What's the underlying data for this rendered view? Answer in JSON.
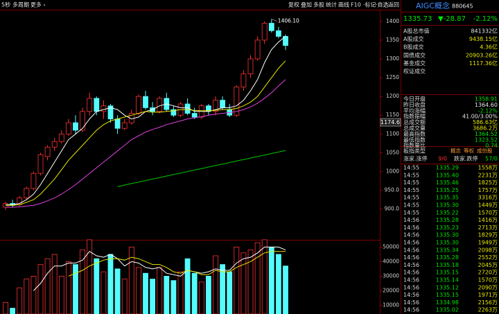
{
  "toolbar": {
    "left": [
      "5秒",
      "多周期",
      "更多 ›"
    ],
    "right": [
      "复权",
      "叠加",
      "多股",
      "统计",
      "画线",
      "F10",
      "·标记",
      "·自选",
      "返回"
    ]
  },
  "chart_data": [
    {
      "type": "candlestick",
      "open": [
        905,
        915,
        912,
        930,
        955,
        995,
        1040,
        1065,
        1080,
        1100,
        1130,
        1110,
        1160,
        1195,
        1160,
        1175,
        1140,
        1115,
        1130,
        1155,
        1200,
        1170,
        1160,
        1195,
        1165,
        1150,
        1180,
        1155,
        1145,
        1175,
        1160,
        1190,
        1165,
        1150,
        1225,
        1260,
        1300,
        1350,
        1395,
        1375,
        1360
      ],
      "high": [
        920,
        925,
        935,
        960,
        1000,
        1050,
        1070,
        1090,
        1110,
        1140,
        1150,
        1170,
        1210,
        1200,
        1190,
        1180,
        1150,
        1140,
        1165,
        1205,
        1215,
        1185,
        1200,
        1210,
        1175,
        1185,
        1195,
        1170,
        1180,
        1180,
        1200,
        1200,
        1180,
        1230,
        1270,
        1310,
        1360,
        1400,
        1406.1,
        1385,
        1365
      ],
      "low": [
        898,
        905,
        908,
        925,
        950,
        990,
        1030,
        1055,
        1075,
        1095,
        1100,
        1105,
        1150,
        1150,
        1140,
        1130,
        1100,
        1110,
        1125,
        1150,
        1165,
        1150,
        1155,
        1160,
        1145,
        1145,
        1150,
        1140,
        1140,
        1150,
        1150,
        1165,
        1145,
        1145,
        1215,
        1250,
        1295,
        1340,
        1370,
        1355,
        1323.52
      ],
      "close": [
        915,
        910,
        930,
        955,
        995,
        1045,
        1065,
        1080,
        1100,
        1130,
        1110,
        1160,
        1195,
        1160,
        1175,
        1140,
        1115,
        1130,
        1155,
        1200,
        1170,
        1160,
        1195,
        1165,
        1150,
        1180,
        1155,
        1145,
        1175,
        1160,
        1190,
        1170,
        1150,
        1225,
        1260,
        1300,
        1350,
        1395,
        1375,
        1360,
        1335.73
      ],
      "up_color": "#ff3232",
      "down_color": "#54fcfc",
      "series": [
        {
          "color": "#ffffff",
          "values": [
            912,
            912,
            915,
            925,
            940,
            965,
            995,
            1025,
            1055,
            1085,
            1100,
            1115,
            1140,
            1160,
            1165,
            1170,
            1165,
            1150,
            1140,
            1145,
            1160,
            1165,
            1175,
            1180,
            1175,
            1170,
            1170,
            1160,
            1160,
            1160,
            1165,
            1170,
            1170,
            1175,
            1190,
            1215,
            1245,
            1290,
            1325,
            1345,
            1360
          ]
        },
        {
          "color": "#e8e800",
          "values": [
            910,
            910,
            912,
            918,
            925,
            940,
            960,
            980,
            1005,
            1030,
            1050,
            1070,
            1090,
            1110,
            1125,
            1135,
            1140,
            1145,
            1150,
            1155,
            1160,
            1158,
            1158,
            1160,
            1162,
            1165,
            1165,
            1163,
            1162,
            1162,
            1163,
            1165,
            1165,
            1168,
            1175,
            1185,
            1200,
            1225,
            1250,
            1275,
            1295
          ]
        },
        {
          "color": "#e040e0",
          "values": [
            905,
            905,
            906,
            908,
            910,
            915,
            922,
            930,
            940,
            952,
            965,
            980,
            995,
            1010,
            1025,
            1040,
            1055,
            1070,
            1085,
            1095,
            1105,
            1112,
            1118,
            1125,
            1130,
            1135,
            1140,
            1143,
            1146,
            1150,
            1153,
            1155,
            1157,
            1160,
            1165,
            1172,
            1182,
            1195,
            1210,
            1228,
            1245
          ]
        },
        {
          "color": "#00c800",
          "values": [
            null,
            null,
            null,
            null,
            null,
            null,
            null,
            null,
            null,
            null,
            null,
            null,
            null,
            null,
            null,
            null,
            960,
            964,
            968,
            972,
            976,
            980,
            984,
            988,
            992,
            996,
            1000,
            1004,
            1008,
            1012,
            1016,
            1020,
            1024,
            1028,
            1032,
            1036,
            1040,
            1044,
            1048,
            1052,
            1056
          ]
        }
      ],
      "ylim": [
        820,
        1431
      ],
      "yticks": [
        1400,
        1350,
        1300,
        1250,
        1200,
        1150,
        1100,
        1050,
        1000,
        {
          "value": 950,
          "label": "950.0"
        },
        {
          "value": 900,
          "label": "900.0"
        }
      ],
      "high_label": "1406.10",
      "cursor_price": "1174.6"
    },
    {
      "type": "bar",
      "values": [
        12000,
        8000,
        22000,
        28000,
        30000,
        38000,
        42000,
        45000,
        30000,
        40000,
        38000,
        48000,
        55000,
        42000,
        33000,
        45000,
        35000,
        28000,
        50000,
        36000,
        32000,
        28000,
        36000,
        30000,
        27000,
        33000,
        42000,
        32000,
        26000,
        30000,
        44000,
        38000,
        33000,
        50000,
        46000,
        48000,
        53000,
        55000,
        50000,
        45000,
        37000
      ],
      "series": [
        {
          "color": "#ffffff",
          "values": [
            null,
            null,
            null,
            null,
            20000,
            25000,
            32000,
            37000,
            37000,
            39000,
            39000,
            41000,
            47000,
            44000,
            43000,
            45000,
            42000,
            37000,
            40000,
            39000,
            36000,
            35000,
            36000,
            32000,
            31000,
            30000,
            34000,
            33000,
            32000,
            33000,
            35000,
            34000,
            34000,
            39000,
            42000,
            43000,
            46000,
            50000,
            50000,
            50000,
            48000
          ]
        },
        {
          "color": "#e8e800",
          "values": [
            null,
            null,
            null,
            null,
            null,
            null,
            null,
            null,
            null,
            30000,
            32000,
            34000,
            37000,
            39000,
            41000,
            42000,
            42000,
            41000,
            43000,
            42000,
            40000,
            38000,
            38000,
            36000,
            33000,
            32000,
            34000,
            33000,
            31000,
            31000,
            34000,
            33000,
            33000,
            36000,
            38000,
            40000,
            43000,
            46000,
            47000,
            47000,
            47000
          ]
        }
      ],
      "ylim": [
        4000,
        54000
      ],
      "yticks": [
        50000,
        40000,
        30000,
        20000,
        10000
      ]
    }
  ],
  "quote_panel": {
    "name": "AIGC概念",
    "code": "880645",
    "price": "1335.73",
    "change": "▼-28.87",
    "pct": "-2.12%",
    "stats": [
      {
        "label": "A股总市值",
        "value": "841332亿",
        "color": "#e6e6e6"
      },
      {
        "label": "A股成交",
        "value": "9438.15亿",
        "color": "#e8e800"
      },
      {
        "label": "B股成交",
        "value": "4.36亿",
        "color": "#e8e800"
      },
      {
        "label": "国债成交",
        "value": "20903.26亿",
        "color": "#e8e800"
      },
      {
        "label": "基金成交",
        "value": "1117.36亿",
        "color": "#e8e800"
      },
      {
        "label": "权证成交"
      }
    ],
    "stats2": [
      {
        "label": "今日开盘",
        "value": "1358.91",
        "color": "#00e600"
      },
      {
        "label": "昨日收盘",
        "value": "1364.60",
        "color": "#e6e6e6"
      },
      {
        "label": "平均涨幅",
        "value": "-2.12%",
        "color": "#00e600"
      },
      {
        "label": "指数振幅",
        "value": "41.00/3.00%",
        "color": "#e6e6e6"
      },
      {
        "label": "总成交额",
        "value": "586.63亿",
        "color": "#e8e800"
      },
      {
        "label": "总成交量",
        "value": "3686.2万",
        "color": "#e8e800"
      },
      {
        "label": "最高指数",
        "value": "1364.52",
        "color": "#00e600"
      },
      {
        "label": "最低指数",
        "value": "1323.52",
        "color": "#00e600"
      },
      {
        "label": "指数量比",
        "value": "0.74",
        "color": "#00e600"
      }
    ],
    "board": {
      "label": "板指类型",
      "values": [
        "概念",
        "等权",
        "成份股"
      ]
    },
    "breadth": {
      "up_label": "涨家.涨停",
      "up": "9/0",
      "down_label": "跌家.跌停",
      "down": "57/0"
    },
    "ticks": [
      [
        "14:55",
        "1335.29",
        "1558万"
      ],
      [
        "14:55",
        "1335.40",
        "2231万"
      ],
      [
        "14:55",
        "1335.46",
        "1825万"
      ],
      [
        "14:55",
        "1335.25",
        "1757万"
      ],
      [
        "14:55",
        "1335.35",
        "3316万"
      ],
      [
        "14:55",
        "1335.30",
        "1449万"
      ],
      [
        "14:55",
        "1335.22",
        "1570万"
      ],
      [
        "14:56",
        "1335.28",
        "1416万"
      ],
      [
        "14:56",
        "1335.23",
        "2713万"
      ],
      [
        "14:56",
        "1335.30",
        "1829万"
      ],
      [
        "14:56",
        "1335.30",
        "1949万"
      ],
      [
        "14:56",
        "1335.34",
        "2098万"
      ],
      [
        "14:56",
        "1335.28",
        "2552万"
      ],
      [
        "14:56",
        "1335.18",
        "2045万"
      ],
      [
        "14:56",
        "1335.15",
        "2720万"
      ],
      [
        "14:56",
        "1335.14",
        "1570万"
      ],
      [
        "14:56",
        "1335.12",
        "2090万"
      ],
      [
        "14:56",
        "1335.15",
        "1971万"
      ],
      [
        "14:56",
        "1334.98",
        "2156万"
      ],
      [
        "14:56",
        "1335.02",
        "2263万"
      ]
    ]
  }
}
